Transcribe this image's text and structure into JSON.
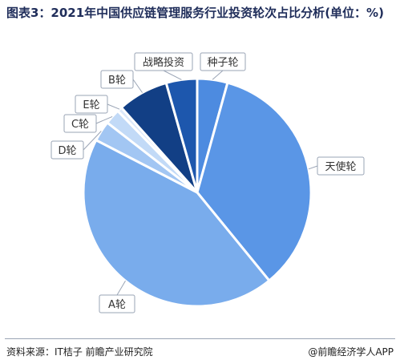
{
  "title": "图表3：2021年中国供应链管理服务行业投资轮次占比分析(单位：%)",
  "source": "资料来源：IT桔子 前瞻产业研究院",
  "credit": "@前瞻经济学人APP",
  "colors": {
    "title": "#1f2d5a",
    "slice_border": "#ffffff",
    "label_border": "#9aa4b5",
    "leader": "#9aa4b5"
  },
  "chart_data": {
    "type": "pie",
    "title": "2021年中国供应链管理服务行业投资轮次占比分析",
    "unit": "%",
    "start_angle_deg": 0,
    "slices": [
      {
        "label": "种子轮",
        "value": 4.3,
        "color": "#4d8be0"
      },
      {
        "label": "天使轮",
        "value": 34.8,
        "color": "#5a96e6"
      },
      {
        "label": "A轮",
        "value": 43.5,
        "color": "#79acec"
      },
      {
        "label": "D轮",
        "value": 2.9,
        "color": "#a2c6f3"
      },
      {
        "label": "C轮",
        "value": 2.2,
        "color": "#c2daf7"
      },
      {
        "label": "E轮",
        "value": 0.7,
        "color": "#dce9fa"
      },
      {
        "label": "B轮",
        "value": 7.2,
        "color": "#123f85"
      },
      {
        "label": "战略投资",
        "value": 4.4,
        "color": "#1d57ad"
      }
    ]
  }
}
